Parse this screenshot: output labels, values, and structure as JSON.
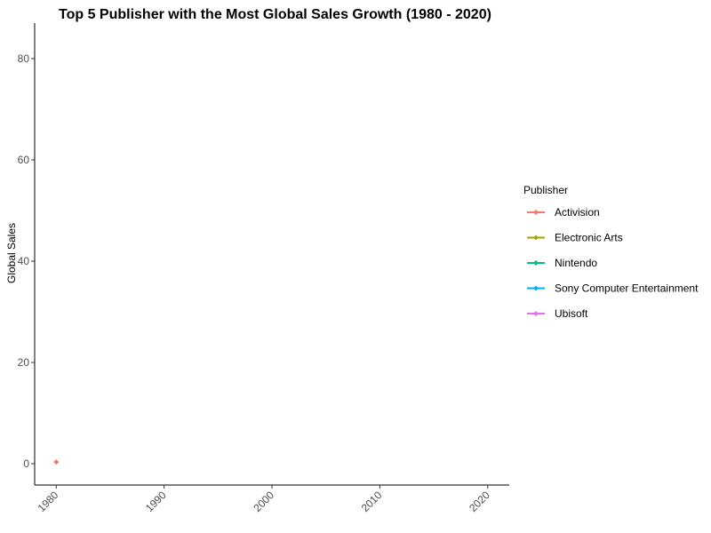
{
  "chart_data": {
    "type": "line",
    "title": "Top 5 Publisher with the Most Global Sales Growth (1980 - 2020)",
    "xlabel": "",
    "ylabel": "Global Sales",
    "xlim": [
      1978,
      2022
    ],
    "ylim": [
      -4.2,
      87
    ],
    "x_ticks": [
      "1980",
      "1990",
      "2000",
      "2010",
      "2020"
    ],
    "y_ticks": [
      "0",
      "20",
      "40",
      "60",
      "80"
    ],
    "grid": false,
    "legend": {
      "title": "Publisher",
      "position": "right"
    },
    "series": [
      {
        "name": "Activision",
        "color": "#F8766D",
        "points": [
          [
            1980,
            0.34
          ]
        ]
      },
      {
        "name": "Electronic Arts",
        "color": "#A3A500",
        "points": []
      },
      {
        "name": "Nintendo",
        "color": "#00BF7D",
        "points": []
      },
      {
        "name": "Sony Computer Entertainment",
        "color": "#00B0F6",
        "points": []
      },
      {
        "name": "Ubisoft",
        "color": "#E76BF3",
        "points": []
      }
    ]
  }
}
